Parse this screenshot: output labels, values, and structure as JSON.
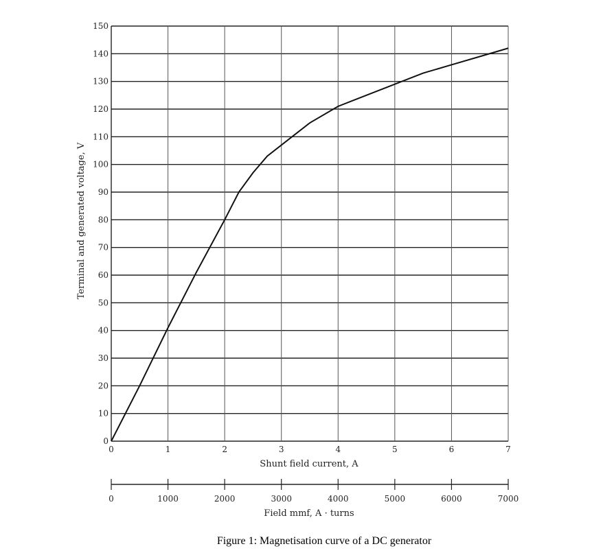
{
  "chart_data": {
    "type": "line",
    "ylabel": "Terminal and generated voltage, V",
    "xlabel": "Shunt field current, A",
    "secondary_xlabel": "Field mmf, A · turns",
    "caption": "Figure 1:  Magnetisation curve of a DC generator",
    "xlim": [
      0,
      7
    ],
    "ylim": [
      0,
      150
    ],
    "x_ticks": [
      "0",
      "1",
      "2",
      "3",
      "4",
      "5",
      "6",
      "7"
    ],
    "y_ticks": [
      "0",
      "10",
      "20",
      "30",
      "40",
      "50",
      "60",
      "70",
      "80",
      "90",
      "100",
      "110",
      "120",
      "130",
      "140",
      "150"
    ],
    "secondary_x_ticks": [
      "0",
      "1000",
      "2000",
      "3000",
      "4000",
      "5000",
      "6000",
      "7000"
    ],
    "grid": true,
    "series": [
      {
        "x": [
          0,
          0.5,
          1.0,
          1.5,
          2.0,
          2.25,
          2.5,
          2.75,
          3.0,
          3.5,
          4.0,
          4.5,
          5.0,
          5.5,
          6.0,
          6.5,
          7.0
        ],
        "y": [
          0,
          20,
          41,
          61,
          80,
          90,
          97,
          103,
          107,
          115,
          121,
          125,
          129,
          133,
          136,
          139,
          142
        ]
      }
    ]
  }
}
